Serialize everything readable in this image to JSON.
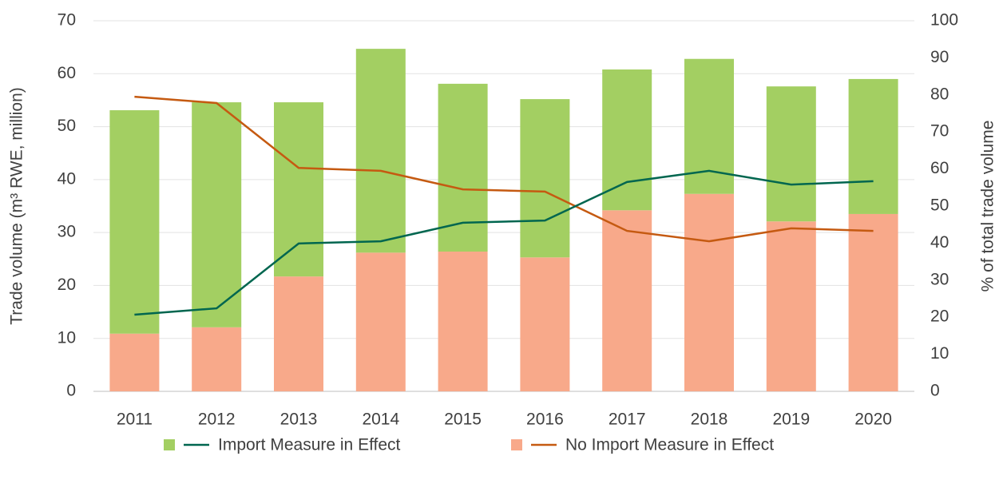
{
  "chart_data": {
    "type": "bar",
    "y_label": "Trade volume (m³ RWE, million)",
    "y2_label": "% of total trade volume",
    "categories": [
      "2011",
      "2012",
      "2013",
      "2014",
      "2015",
      "2016",
      "2017",
      "2018",
      "2019",
      "2020"
    ],
    "stacked": true,
    "series": [
      {
        "name": "No Import Measure in Effect",
        "color": "#f8a98a",
        "values": [
          10.9,
          12.1,
          21.7,
          26.2,
          26.4,
          25.3,
          34.2,
          37.3,
          32.1,
          33.5
        ],
        "line_color": "#c55a11",
        "line_axis": "y2",
        "line_values": [
          79.5,
          77.8,
          60.3,
          59.5,
          54.5,
          53.9,
          43.3,
          40.5,
          44.0,
          43.3
        ]
      },
      {
        "name": "Import Measure in Effect",
        "color": "#a3cf62",
        "values": [
          42.2,
          42.5,
          32.9,
          38.5,
          31.7,
          29.9,
          26.6,
          25.5,
          25.5,
          25.5
        ],
        "line_color": "#00664f",
        "line_axis": "y2",
        "line_values": [
          20.7,
          22.4,
          39.9,
          40.5,
          45.5,
          46.1,
          56.5,
          59.5,
          55.8,
          56.7
        ]
      }
    ],
    "legend_order": [
      1,
      0
    ],
    "ylim": [
      0,
      70
    ],
    "yticks": [
      0,
      10,
      20,
      30,
      40,
      50,
      60,
      70
    ],
    "y2lim": [
      0,
      100
    ],
    "y2ticks": [
      0,
      10,
      20,
      30,
      40,
      50,
      60,
      70,
      80,
      90,
      100
    ],
    "grid": true
  }
}
